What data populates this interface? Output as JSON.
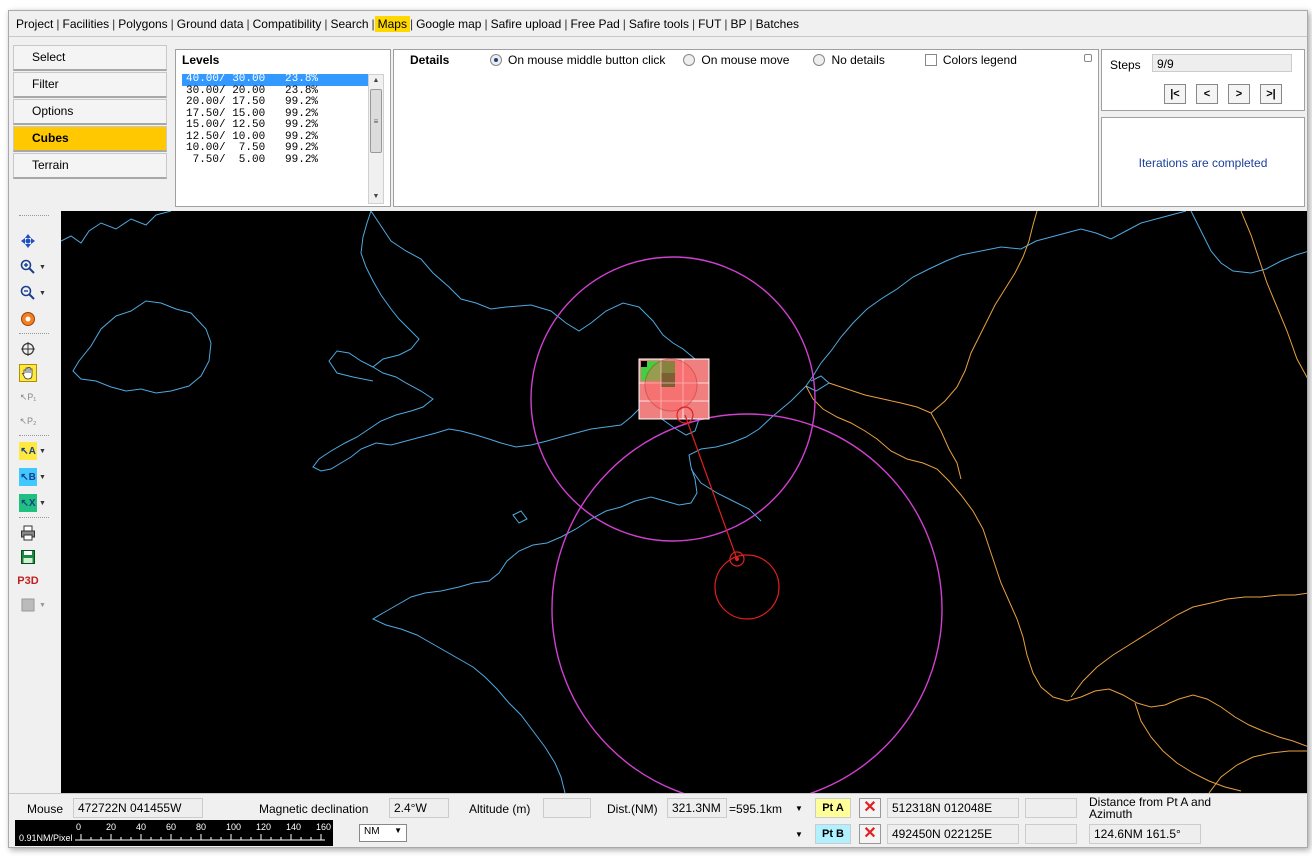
{
  "menu": [
    "Project",
    "Facilities",
    "Polygons",
    "Ground data",
    "Compatibility",
    "Search",
    "Maps",
    "Google map",
    "Safire upload",
    "Free Pad",
    "Safire tools",
    "FUT",
    "BP",
    "Batches"
  ],
  "menu_active": "Maps",
  "sidebar": [
    "Select",
    "Filter",
    "Options",
    "Cubes",
    "Terrain"
  ],
  "sidebar_active": "Cubes",
  "levels": {
    "title": "Levels",
    "rows": [
      "40.00/ 30.00   23.8%",
      "30.00/ 20.00   23.8%",
      "20.00/ 17.50   99.2%",
      "17.50/ 15.00   99.2%",
      "15.00/ 12.50   99.2%",
      "12.50/ 10.00   99.2%",
      "10.00/  7.50   99.2%",
      " 7.50/  5.00   99.2%"
    ],
    "selected": 0
  },
  "details": {
    "title": "Details",
    "options": [
      "On mouse middle button click",
      "On mouse move",
      "No details"
    ],
    "selected": 0,
    "colors_legend": "Colors legend"
  },
  "steps": {
    "label": "Steps",
    "value": "9/9",
    "buttons": [
      "|<",
      "<",
      ">",
      ">|"
    ]
  },
  "status": "Iterations are completed",
  "bottom": {
    "mouse_label": "Mouse",
    "mouse_value": "472722N 041455W",
    "magdecl_label": "Magnetic declination",
    "magdecl_value": "2.4°W",
    "altitude_label": "Altitude (m)",
    "altitude_value": "",
    "dist_label": "Dist.(NM)",
    "dist_value": "321.3NM",
    "dist_km": "=595.1km",
    "pta_label": "Pt A",
    "pta_value": "512318N 012048E",
    "ptb_label": "Pt B",
    "ptb_value": "492450N 022125E",
    "dist_from_label": "Distance from Pt A and Azimuth",
    "dist_from_value": "124.6NM  161.5°",
    "scale_label": "0.91NM/Pixel",
    "scale_ticks": [
      "0",
      "20",
      "40",
      "60",
      "80",
      "100",
      "120",
      "140",
      "160"
    ],
    "units": "NM"
  },
  "colors": {
    "coast": "#4fa9e0",
    "border": "#e8a040",
    "circle": "#d040d0",
    "range": "#e02020",
    "accent": "#ffd800"
  }
}
